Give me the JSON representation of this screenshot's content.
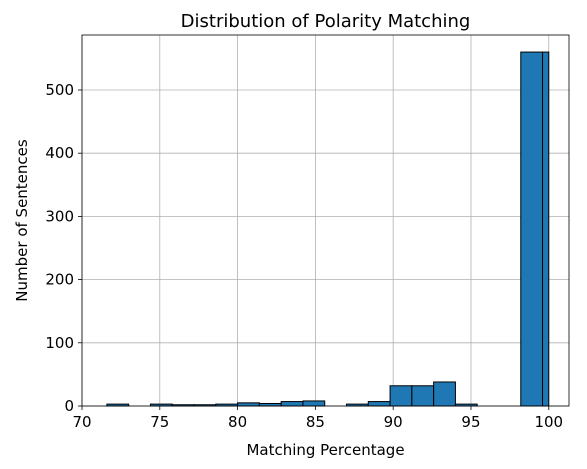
{
  "chart_data": {
    "type": "bar",
    "subtype": "histogram",
    "title": "Distribution of Polarity Matching",
    "xlabel": "Matching Percentage",
    "ylabel": "Number of Sentences",
    "xlim": [
      70,
      101.3
    ],
    "ylim": [
      0,
      587
    ],
    "xticks": [
      70,
      75,
      80,
      85,
      90,
      95,
      100
    ],
    "yticks": [
      0,
      100,
      200,
      300,
      400,
      500
    ],
    "grid": true,
    "bar_color": "#1f77b4",
    "edge_color": "#000000",
    "bins": [
      {
        "x0": 71.6,
        "x1": 73.0,
        "value": 3
      },
      {
        "x0": 73.0,
        "x1": 74.4,
        "value": 0
      },
      {
        "x0": 74.4,
        "x1": 75.8,
        "value": 3
      },
      {
        "x0": 75.8,
        "x1": 77.2,
        "value": 2
      },
      {
        "x0": 77.2,
        "x1": 78.6,
        "value": 2
      },
      {
        "x0": 78.6,
        "x1": 80.0,
        "value": 3
      },
      {
        "x0": 80.0,
        "x1": 81.4,
        "value": 5
      },
      {
        "x0": 81.4,
        "x1": 82.8,
        "value": 4
      },
      {
        "x0": 82.8,
        "x1": 84.2,
        "value": 7
      },
      {
        "x0": 84.2,
        "x1": 85.6,
        "value": 8
      },
      {
        "x0": 85.6,
        "x1": 87.0,
        "value": 0
      },
      {
        "x0": 87.0,
        "x1": 88.4,
        "value": 3
      },
      {
        "x0": 88.4,
        "x1": 89.8,
        "value": 7
      },
      {
        "x0": 89.8,
        "x1": 91.2,
        "value": 32
      },
      {
        "x0": 91.2,
        "x1": 92.6,
        "value": 32
      },
      {
        "x0": 92.6,
        "x1": 94.0,
        "value": 38
      },
      {
        "x0": 94.0,
        "x1": 95.4,
        "value": 3
      },
      {
        "x0": 95.4,
        "x1": 96.8,
        "value": 0
      },
      {
        "x0": 96.8,
        "x1": 98.2,
        "value": 0
      },
      {
        "x0": 98.2,
        "x1": 99.6,
        "value": 560
      },
      {
        "x0": 99.6,
        "x1": 100.0,
        "value": 560
      }
    ]
  }
}
